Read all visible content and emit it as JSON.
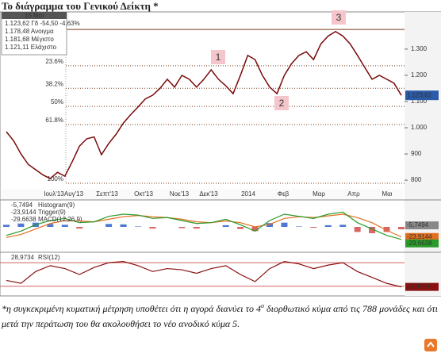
{
  "header": {
    "title": "Το διάγραμμα του Γενικού Δείκτη *"
  },
  "chart_data": [
    {
      "type": "line",
      "color": "#7a0a0a",
      "info": {
        "date": "15 Μαι",
        "rows": [
          "1.123,62 Γδ -54,50 -4,63%",
          "1.178,48 Ανοιγμα",
          "1.181,68 Μέγιστο",
          "1.121,11 Ελάχιστο"
        ]
      },
      "x_labels": [
        "Ιουλ'13",
        "Αυγ'13",
        "Σεπτ'13",
        "Οκτ'13",
        "Νοε'13",
        "Δεκ'13",
        "2014",
        "Φεβ",
        "Μαρ",
        "Απρ",
        "Μαι"
      ],
      "values": [
        985,
        950,
        900,
        860,
        840,
        820,
        806,
        830,
        815,
        870,
        930,
        958,
        965,
        897,
        940,
        975,
        1018,
        1050,
        1079,
        1110,
        1124,
        1150,
        1185,
        1155,
        1200,
        1185,
        1155,
        1185,
        1221,
        1185,
        1160,
        1130,
        1200,
        1276,
        1260,
        1200,
        1155,
        1130,
        1200,
        1245,
        1276,
        1290,
        1260,
        1320,
        1350,
        1367,
        1350,
        1320,
        1276,
        1230,
        1185,
        1200,
        1185,
        1170,
        1123.62
      ],
      "ylim": [
        770,
        1442
      ],
      "yticks": [
        800,
        900,
        {
          "value": 1000,
          "label": "1.000"
        },
        {
          "value": 1100,
          "label": "1.100"
        },
        {
          "value": 1200,
          "label": "1.200"
        },
        {
          "value": 1300,
          "label": "1.300"
        }
      ],
      "last": {
        "value": 1123.62,
        "label": "1.123,62"
      },
      "top_line": 1375,
      "fib_levels": [
        {
          "value": 1236.5,
          "label": "23.6%"
        },
        {
          "value": 1150.8,
          "label": "38.2%"
        },
        {
          "value": 1081.5,
          "label": "50%"
        },
        {
          "value": 1012.2,
          "label": "61.8%"
        },
        {
          "value": 788,
          "label": "100%"
        }
      ],
      "annotations": [
        "1",
        "2",
        "3"
      ]
    },
    {
      "type": "macd",
      "ylim": [
        -60,
        60
      ],
      "series": [
        {
          "name": "Histogram(9)",
          "color": "#2255cc",
          "value_label": "-5,7494",
          "values": [
            5,
            8,
            10,
            7,
            5,
            -4,
            0,
            7,
            6,
            1,
            -4,
            0,
            -3,
            -4,
            0,
            4,
            -5,
            -10,
            9,
            10,
            1,
            -2,
            4,
            5,
            -12,
            -15,
            -12,
            -5.7494
          ]
        },
        {
          "name": "Trigger(9)",
          "color": "#e07020",
          "value_label": "-23,9144",
          "values": [
            -25,
            -18,
            -5,
            8,
            15,
            14,
            12,
            18,
            24,
            27,
            24,
            22,
            18,
            12,
            10,
            14,
            10,
            0,
            6,
            20,
            24,
            22,
            26,
            30,
            22,
            10,
            -8,
            -23.9144
          ]
        },
        {
          "name": "MACD(12,26,9)",
          "color": "#2a9a2a",
          "value_label": "-29,6638",
          "values": [
            -20,
            -10,
            5,
            15,
            20,
            10,
            12,
            25,
            30,
            28,
            20,
            22,
            15,
            8,
            10,
            18,
            5,
            -10,
            15,
            30,
            25,
            20,
            30,
            35,
            10,
            -5,
            -20,
            -29.6638
          ]
        }
      ]
    },
    {
      "type": "rsi",
      "ylim": [
        15,
        85
      ],
      "levels": [
        70,
        30
      ],
      "series": [
        {
          "name": "RSI(12)",
          "color": "#8b1010",
          "value_label": "28,9734",
          "values": [
            40,
            35,
            55,
            65,
            60,
            50,
            62,
            70,
            72,
            65,
            55,
            60,
            58,
            52,
            60,
            65,
            50,
            38,
            60,
            72,
            68,
            60,
            66,
            70,
            55,
            45,
            35,
            28.9734
          ]
        }
      ]
    }
  ],
  "footnote": [
    "*η συγκεκριμένη κυματική μέτρηση υποθέτει ότι η αγορά διανύει το 4",
    "ο",
    " διορθωτικό κύμα από τις 788 μονάδες και ότι μετά την περάτωση του θα ακολουθήσει το νέο ανοδικό κύμα 5."
  ]
}
